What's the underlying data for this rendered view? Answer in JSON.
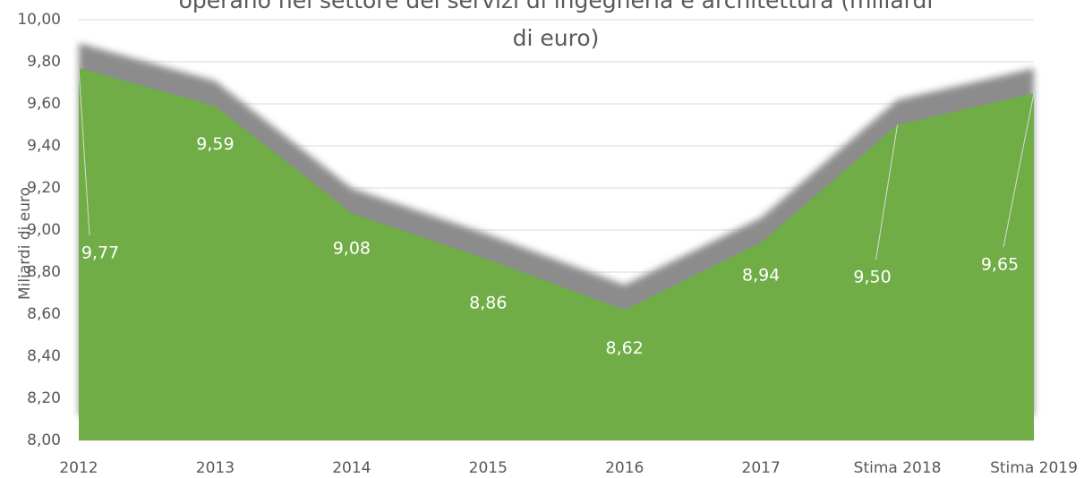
{
  "chart_data": {
    "type": "area",
    "title_lines": [
      "operano nel settore dei servizi di ingegneria e architettura (miliardi",
      "di euro)"
    ],
    "y_label": "Miliardi di euro",
    "categories": [
      "2012",
      "2013",
      "2014",
      "2015",
      "2016",
      "2017",
      "Stima 2018",
      "Stima 2019"
    ],
    "values": [
      9.77,
      9.59,
      9.08,
      8.86,
      8.62,
      8.94,
      9.5,
      9.65
    ],
    "value_labels": [
      "9,77",
      "9,59",
      "9,08",
      "8,86",
      "8,62",
      "8,94",
      "9,50",
      "9,65"
    ],
    "color": "#70ad47",
    "ylim": [
      8,
      10
    ],
    "yticks": [
      {
        "value": 8,
        "label": "8,00"
      },
      {
        "value": 8.2,
        "label": "8,20"
      },
      {
        "value": 8.4,
        "label": "8,40"
      },
      {
        "value": 8.6,
        "label": "8,60"
      },
      {
        "value": 8.8,
        "label": "8,80"
      },
      {
        "value": 9,
        "label": "9,00"
      },
      {
        "value": 9.2,
        "label": "9,20"
      },
      {
        "value": 9.4,
        "label": "9,40"
      },
      {
        "value": 9.6,
        "label": "9,60"
      },
      {
        "value": 9.8,
        "label": "9,80"
      },
      {
        "value": 10,
        "label": "10,00"
      }
    ],
    "grid": true
  }
}
